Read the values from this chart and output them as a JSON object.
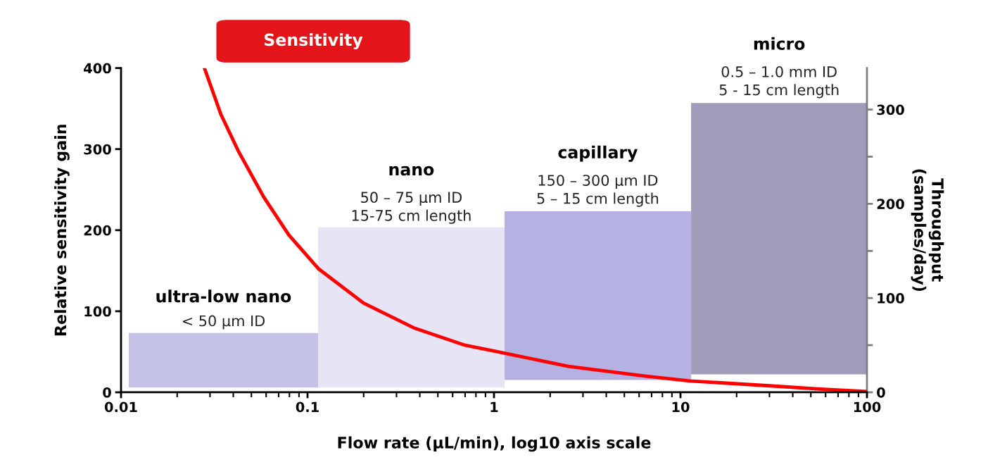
{
  "chart_data": {
    "type": "line",
    "xlabel": "Flow rate (µL/min), log10 axis scale",
    "ylabel": "Relative sensitivity gain",
    "y2label": "Throughput\n(samples/day)",
    "log": "x",
    "xlim": [
      0.01,
      100
    ],
    "xticks": [
      {
        "value": 0.01,
        "label": "0.01"
      },
      {
        "value": 0.1,
        "label": "0.1"
      },
      1,
      10,
      100
    ],
    "ylim": [
      0,
      400
    ],
    "yticks": [
      0,
      100,
      200,
      300,
      400
    ],
    "y2lim": [
      0,
      344
    ],
    "y2ticks": [
      0,
      {
        "value": 50,
        "label": null
      },
      100,
      {
        "value": 150,
        "label": null
      },
      200,
      {
        "value": 250,
        "label": null
      },
      300
    ],
    "grid": false,
    "legend": false,
    "marker": "none",
    "line_style": "solid",
    "annotations": [
      {
        "text": "ultra-low nano\n< 50 µm ID",
        "x": 0.0354,
        "y": 73
      },
      {
        "text": "nano\n50 – 75 µm ID\n15-75 cm length",
        "x": 0.36,
        "y": 203
      },
      {
        "text": "capillary\n150 – 300 µm ID\n5 – 15 cm length",
        "x": 3.6,
        "y": 224
      },
      {
        "text": "micro\n0.5 – 1.0 mm ID\n5 - 15 cm length",
        "x": 33.8,
        "y": 358
      }
    ],
    "series": [
      {
        "type": "histogram",
        "axis": "y2",
        "bins": [
          0.011,
          0.114,
          1.14,
          11.4,
          100
        ],
        "values": [
          58,
          170,
          179,
          288
        ],
        "base": [
          5,
          5,
          13,
          19
        ],
        "colors": [
          "#c5c3e8",
          "#e6e4f5",
          "#b5b2e3",
          "#a09dba"
        ]
      },
      {
        "name": "Sensitivity",
        "color": "#ff0000",
        "x": [
          0.0281,
          0.0343,
          0.0427,
          0.0582,
          0.0794,
          0.115,
          0.2,
          0.376,
          0.7,
          1.0,
          2.5,
          6.4,
          11.2,
          30,
          56,
          100
        ],
        "values": [
          399,
          343,
          297,
          241,
          194,
          152,
          110,
          79,
          58,
          51,
          32,
          20,
          14,
          8,
          4,
          1
        ]
      }
    ]
  }
}
